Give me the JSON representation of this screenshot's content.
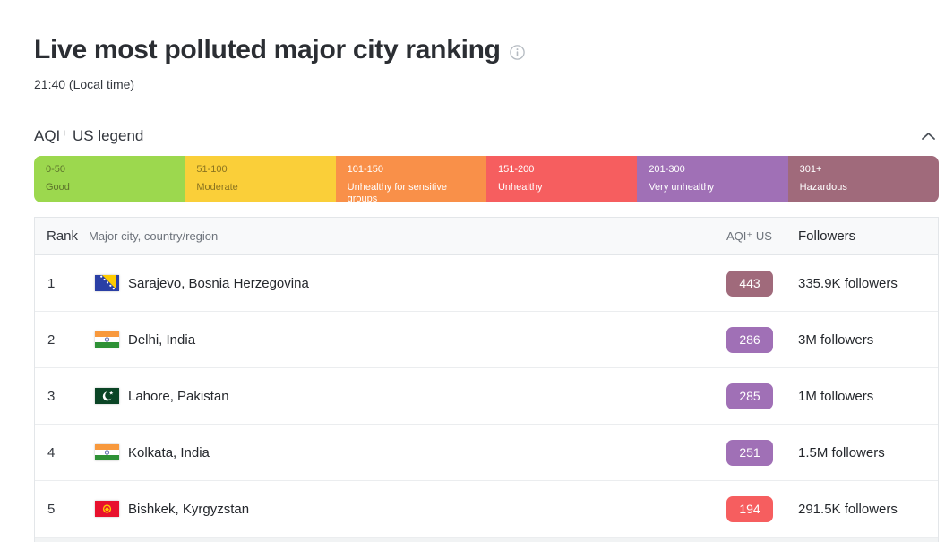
{
  "page": {
    "title": "Live most polluted major city ranking",
    "local_time": "21:40 (Local time)"
  },
  "legend": {
    "title": "AQI⁺ US legend",
    "segments": [
      {
        "range": "0-50",
        "label": "Good",
        "color": "#9cd84e",
        "text_color": "#5d752c"
      },
      {
        "range": "51-100",
        "label": "Moderate",
        "color": "#facf39",
        "text_color": "#8b7420"
      },
      {
        "range": "101-150",
        "label": "Unhealthy for sensitive groups",
        "color": "#f99049",
        "text_color": "#ffffff"
      },
      {
        "range": "151-200",
        "label": "Unhealthy",
        "color": "#f65e5f",
        "text_color": "#ffffff"
      },
      {
        "range": "201-300",
        "label": "Very unhealthy",
        "color": "#a070b6",
        "text_color": "#ffffff"
      },
      {
        "range": "301+",
        "label": "Hazardous",
        "color": "#a06a7b",
        "text_color": "#ffffff"
      }
    ]
  },
  "table": {
    "headers": {
      "rank": "Rank",
      "city": "Major city, country/region",
      "aqi": "AQI⁺ US",
      "followers": "Followers"
    },
    "rows": [
      {
        "rank": "1",
        "flag": "bosnia-herzegovina-flag",
        "city": "Sarajevo, Bosnia Herzegovina",
        "aqi": "443",
        "aqi_color": "#a06a7b",
        "followers": "335.9K followers"
      },
      {
        "rank": "2",
        "flag": "india-flag",
        "city": "Delhi, India",
        "aqi": "286",
        "aqi_color": "#a070b6",
        "followers": "3M followers"
      },
      {
        "rank": "3",
        "flag": "pakistan-flag",
        "city": "Lahore, Pakistan",
        "aqi": "285",
        "aqi_color": "#a070b6",
        "followers": "1M followers"
      },
      {
        "rank": "4",
        "flag": "india-flag",
        "city": "Kolkata, India",
        "aqi": "251",
        "aqi_color": "#a070b6",
        "followers": "1.5M followers"
      },
      {
        "rank": "5",
        "flag": "kyrgyzstan-flag",
        "city": "Bishkek, Kyrgyzstan",
        "aqi": "194",
        "aqi_color": "#f65e5f",
        "followers": "291.5K followers"
      }
    ]
  }
}
